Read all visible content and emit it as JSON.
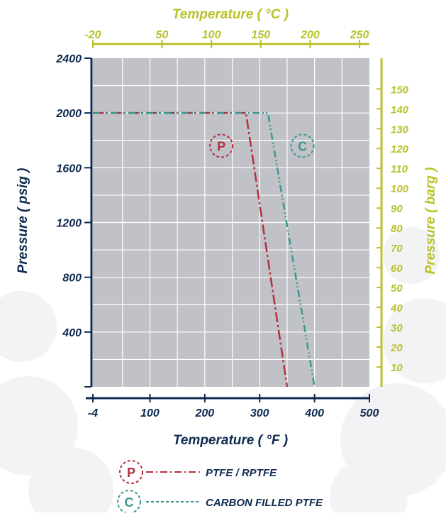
{
  "chart_data": {
    "type": "line",
    "title": "",
    "xlabel_bottom": "Temperature ( °F )",
    "xlabel_top": "Temperature ( °C )",
    "ylabel_left": "Pressure ( psig )",
    "ylabel_right": "Pressure ( barg )",
    "x_bottom": {
      "lim": [
        -4,
        500
      ],
      "ticks": [
        -4,
        100,
        200,
        300,
        400,
        500
      ],
      "tick_labels": [
        "-4",
        "100",
        "200",
        "300",
        "400",
        "500"
      ]
    },
    "x_top": {
      "ticks": [
        -20,
        50,
        100,
        150,
        200,
        250
      ],
      "tick_labels": [
        "-20",
        "50",
        "100",
        "150",
        "200",
        "250"
      ]
    },
    "y_left": {
      "lim": [
        0,
        2400
      ],
      "ticks": [
        400,
        800,
        1200,
        1600,
        2000,
        2400
      ],
      "tick_labels": [
        "400",
        "800",
        "1200",
        "1600",
        "2000",
        "2400"
      ]
    },
    "y_right": {
      "ticks": [
        10,
        20,
        30,
        40,
        50,
        60,
        70,
        80,
        90,
        100,
        110,
        120,
        130,
        140,
        150
      ],
      "tick_labels": [
        "10",
        "20",
        "30",
        "40",
        "50",
        "60",
        "70",
        "80",
        "90",
        "100",
        "110",
        "120",
        "130",
        "140",
        "150"
      ]
    },
    "grid": true,
    "series": [
      {
        "name": "PTFE / RPTFE",
        "marker": "P",
        "color": "#b5303d",
        "dash": "dash-dot",
        "x": [
          -4,
          275,
          350
        ],
        "y": [
          2000,
          2000,
          0
        ]
      },
      {
        "name": "CARBON FILLED PTFE",
        "marker": "C",
        "color": "#3e978f",
        "dash": "dash-dot-dot",
        "x": [
          -4,
          315,
          400
        ],
        "y": [
          2000,
          2000,
          0
        ]
      }
    ],
    "legend": "bottom"
  },
  "colors": {
    "plot_bg": "#c0c2c7",
    "grid": "#ffffff",
    "left_axis": "#0d2a4f",
    "top_axis": "#b8c22a",
    "right_axis": "#b8c22a"
  }
}
